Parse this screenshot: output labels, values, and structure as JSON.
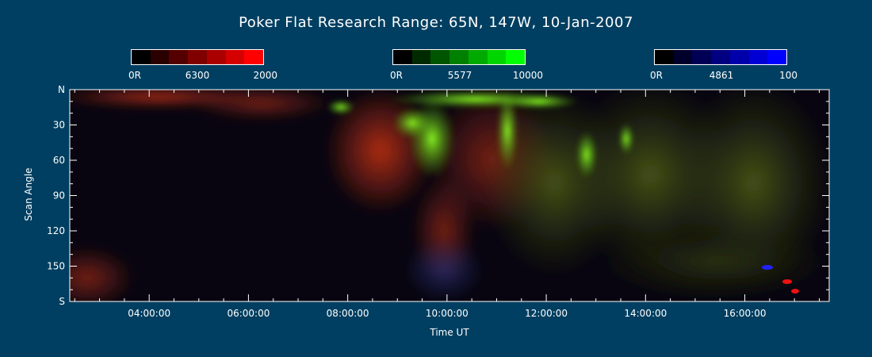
{
  "chart_data": {
    "type": "heatmap",
    "title": "Poker Flat Research Range: 65N, 147W, 10-Jan-2007",
    "xlabel": "Time UT",
    "ylabel": "Scan Angle",
    "x_ticks": [
      "04:00:00",
      "06:00:00",
      "08:00:00",
      "10:00:00",
      "12:00:00",
      "14:00:00",
      "16:00:00"
    ],
    "x_tick_hours": [
      4,
      6,
      8,
      10,
      12,
      14,
      16
    ],
    "xlim_hours": [
      2.4,
      17.7
    ],
    "y_ticks": [
      "N",
      "30",
      "60",
      "90",
      "120",
      "150",
      "S"
    ],
    "y_tick_values": [
      0,
      30,
      60,
      90,
      120,
      150,
      180
    ],
    "ylim": [
      0,
      180
    ],
    "color_scales": [
      {
        "wavelength": "6300",
        "min_label": "0R",
        "max_label": "2000",
        "color": "#ff0000"
      },
      {
        "wavelength": "5577",
        "min_label": "0R",
        "max_label": "10000",
        "color": "#00ff00"
      },
      {
        "wavelength": "4861",
        "min_label": "0R",
        "max_label": "100",
        "color": "#0000ff"
      }
    ]
  }
}
